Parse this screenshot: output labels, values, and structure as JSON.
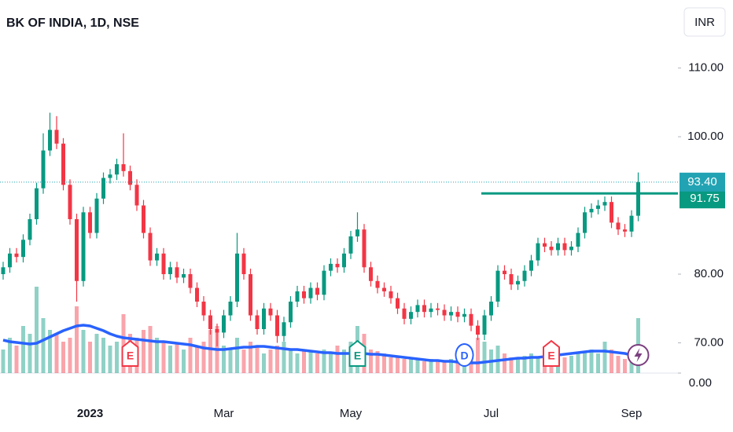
{
  "chart_data": {
    "type": "candlestick",
    "title": "BK OF INDIA, 1D, NSE",
    "currency_button": "INR",
    "categories": [
      null,
      null,
      null,
      null,
      null,
      null,
      null,
      null,
      null,
      null,
      null,
      null,
      null,
      "2023",
      null,
      null,
      null,
      null,
      null,
      null,
      null,
      null,
      null,
      null,
      null,
      null,
      null,
      null,
      null,
      null,
      null,
      null,
      null,
      "Mar",
      null,
      null,
      null,
      null,
      null,
      null,
      null,
      null,
      null,
      null,
      null,
      null,
      null,
      null,
      null,
      null,
      null,
      null,
      "May",
      null,
      null,
      null,
      null,
      null,
      null,
      null,
      null,
      null,
      null,
      null,
      null,
      null,
      null,
      null,
      null,
      null,
      null,
      null,
      null,
      "Jul",
      null,
      null,
      null,
      null,
      null,
      null,
      null,
      null,
      null,
      null,
      null,
      null,
      null,
      null,
      null,
      null,
      null,
      null,
      null,
      null,
      "Sep",
      null
    ],
    "open": [
      80,
      81,
      83,
      82.5,
      85,
      88,
      92.5,
      98,
      101,
      99,
      93,
      88,
      79,
      89,
      86,
      91,
      94,
      94.5,
      96,
      95,
      93,
      90,
      86,
      82,
      83,
      80,
      81,
      79.5,
      80,
      78,
      76,
      74,
      72,
      71.5,
      74,
      76,
      83,
      80,
      74,
      72,
      75,
      74,
      71,
      73,
      76,
      77.5,
      76.5,
      78,
      77,
      80.5,
      81.5,
      81,
      83,
      85.5,
      86.5,
      81,
      79,
      78,
      77.5,
      76.5,
      75,
      73.5,
      74.5,
      75.5,
      74.5,
      75,
      74.8,
      74,
      74.5,
      73.8,
      74.2,
      72.5,
      71.2,
      74,
      76,
      80.5,
      80,
      78.5,
      79,
      80.5,
      82,
      84.5,
      84,
      83.5,
      84.5,
      83.5,
      84,
      86,
      89,
      89.5,
      90,
      90.5,
      87.5,
      86.5,
      86.2,
      88.5
    ],
    "high": [
      81.8,
      83.8,
      83.8,
      85.8,
      88.8,
      93.3,
      100.5,
      103.5,
      103,
      99.8,
      93.8,
      88.8,
      89.8,
      89.8,
      91.8,
      94.8,
      95.3,
      96.8,
      100.5,
      95.8,
      93.8,
      90.8,
      86.8,
      83.8,
      83.8,
      81.8,
      81.8,
      80.8,
      80.8,
      78.8,
      76.8,
      74.8,
      72.8,
      74.8,
      76.8,
      86,
      83.8,
      80.8,
      74.8,
      75.8,
      75.8,
      74.8,
      73.8,
      76.8,
      78.3,
      78.3,
      78.8,
      78.8,
      81.3,
      82.3,
      82.3,
      83.8,
      86.3,
      89,
      87.3,
      81.8,
      79.8,
      78.8,
      78.3,
      77.3,
      75.8,
      75.3,
      76.3,
      76.3,
      75.8,
      75.8,
      75.6,
      75.3,
      75.3,
      75,
      75,
      73.3,
      74.8,
      76.8,
      81.3,
      81.3,
      80.8,
      79.8,
      81.3,
      82.8,
      85.3,
      85.3,
      84.8,
      85.3,
      85.3,
      84.8,
      86.8,
      89.8,
      90.3,
      90.8,
      91.3,
      91.3,
      88.3,
      87.3,
      89.3,
      94.8
    ],
    "low": [
      79.2,
      80.2,
      81.7,
      81.7,
      84.2,
      87.2,
      91.7,
      97.2,
      98.2,
      92.2,
      87.2,
      76,
      78.2,
      85.2,
      85.2,
      90.2,
      93.2,
      93.7,
      94.2,
      92.2,
      89.2,
      85.2,
      81.2,
      81.2,
      79.2,
      79.2,
      78.7,
      78.7,
      77.2,
      75.2,
      73.2,
      71.2,
      69.5,
      70.7,
      73.2,
      75.2,
      79.2,
      73.2,
      71.2,
      71.2,
      73.2,
      70,
      70.2,
      72.2,
      75.2,
      75.7,
      75.7,
      76.2,
      76.2,
      79.7,
      80.2,
      80.2,
      82.2,
      84.7,
      80.2,
      78.2,
      77.2,
      76.7,
      75.7,
      74.2,
      72.7,
      72.7,
      73.7,
      73.7,
      73.7,
      74,
      73.2,
      73.2,
      73,
      73,
      71.7,
      70.4,
      70.4,
      73.2,
      75.2,
      79.2,
      77.7,
      77.7,
      78.2,
      79.7,
      81.2,
      83.2,
      82.7,
      82.7,
      82.7,
      82.7,
      83.2,
      85.2,
      88.2,
      88.7,
      89.2,
      86.7,
      85.7,
      85.4,
      85.4,
      87.7
    ],
    "close": [
      81,
      83,
      82.5,
      85,
      88,
      92.5,
      98,
      101,
      99,
      93,
      88,
      79,
      89,
      86,
      91,
      94,
      94.5,
      96,
      95,
      93,
      90,
      86,
      82,
      83,
      80,
      81,
      79.5,
      80,
      78,
      76,
      74,
      72,
      71.5,
      74,
      76,
      83,
      80,
      74,
      72,
      75,
      74,
      71,
      73,
      76,
      77.5,
      76.5,
      78,
      77,
      80.5,
      81.5,
      81,
      83,
      85.5,
      86.5,
      81,
      79,
      78,
      77.5,
      76.5,
      75,
      73.5,
      74.5,
      75.5,
      74.5,
      75,
      74.8,
      74,
      74.5,
      73.8,
      74.2,
      72.5,
      71.2,
      74,
      76,
      80.5,
      80,
      78.5,
      79,
      80.5,
      82,
      84.5,
      84,
      83.5,
      84.5,
      83.5,
      84,
      86,
      89,
      89.5,
      90,
      90.5,
      87.5,
      86.5,
      86.2,
      88.5,
      93.4
    ],
    "volume": [
      30,
      45,
      35,
      60,
      50,
      110,
      70,
      55,
      50,
      40,
      45,
      85,
      55,
      40,
      50,
      45,
      35,
      40,
      75,
      50,
      45,
      55,
      60,
      45,
      40,
      35,
      38,
      30,
      45,
      35,
      40,
      55,
      60,
      35,
      30,
      45,
      30,
      40,
      35,
      25,
      30,
      35,
      40,
      30,
      25,
      30,
      28,
      25,
      30,
      25,
      35,
      30,
      40,
      60,
      50,
      30,
      28,
      25,
      20,
      22,
      18,
      20,
      18,
      15,
      18,
      16,
      15,
      18,
      20,
      15,
      22,
      45,
      40,
      30,
      35,
      25,
      20,
      18,
      22,
      25,
      20,
      30,
      35,
      25,
      20,
      22,
      25,
      28,
      30,
      25,
      40,
      30,
      22,
      18,
      25,
      70
    ],
    "volume_ma": [
      42,
      40,
      39,
      38,
      37,
      38,
      42,
      46,
      50,
      54,
      57,
      60,
      61,
      60,
      57,
      54,
      50,
      47,
      45,
      44,
      43,
      42,
      41,
      40,
      40,
      39,
      38,
      37,
      36,
      34,
      32,
      31,
      30,
      30,
      31,
      32,
      33,
      33,
      34,
      34,
      33,
      32,
      31,
      30,
      30,
      29,
      28,
      27,
      26,
      26,
      25,
      25,
      25,
      25,
      25,
      24,
      24,
      23,
      22,
      21,
      20,
      19,
      18,
      17,
      16,
      16,
      15,
      15,
      14,
      14,
      13,
      13,
      14,
      15,
      16,
      17,
      18,
      19,
      19,
      20,
      20,
      21,
      22,
      23,
      24,
      25,
      26,
      27,
      28,
      28,
      28,
      27,
      26,
      25,
      23,
      21
    ],
    "ylim": [
      65.6,
      119.9
    ],
    "yticks": [
      {
        "value": 70,
        "label": "70.00"
      },
      {
        "value": 80,
        "label": "80.00"
      },
      {
        "value": 100,
        "label": "100.00"
      },
      {
        "value": 110,
        "label": "110.00"
      }
    ],
    "volume_lim": [
      0,
      120
    ],
    "volume_ticks": [
      {
        "value": 0,
        "label": "0.00"
      }
    ],
    "up_color": "#089981",
    "down_color": "#f23645",
    "ma_color": "#2962ff",
    "price_label": {
      "value": 93.4,
      "label": "93.40",
      "color": "#22a3b3"
    },
    "horizontal_line": {
      "value": 91.75,
      "label": "91.75",
      "color": "#089981"
    },
    "events": [
      {
        "index": 19,
        "label": "E",
        "color": "#f23645"
      },
      {
        "index": 53,
        "label": "E",
        "color": "#089981"
      },
      {
        "index": 69,
        "label": "D",
        "color": "#2962ff"
      },
      {
        "index": 82,
        "label": "E",
        "color": "#f23645"
      }
    ]
  }
}
